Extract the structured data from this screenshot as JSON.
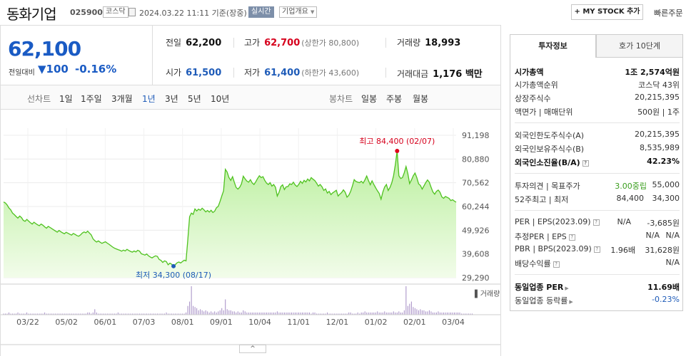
{
  "header": {
    "title": "동화기업",
    "code": "025900",
    "market": "코스닥",
    "date": "2024.03.22 11:11 기준(장중)",
    "realtime": "실시간",
    "company_info": "기업개요",
    "mystock": "+ MY STOCK 추가",
    "quick_order": "빠른주문"
  },
  "price": {
    "current": "62,100",
    "change_label": "전일대비",
    "change_arrow": "▼",
    "change": "100",
    "change_pct": "-0.16%"
  },
  "stats": {
    "prev_label": "전일",
    "prev": "62,200",
    "high_label": "고가",
    "high": "62,700",
    "upper_limit": "(상한가 80,800)",
    "volume_label": "거래량",
    "volume": "18,993",
    "open_label": "시가",
    "open": "61,500",
    "low_label": "저가",
    "low": "61,400",
    "lower_limit": "(하한가 43,600)",
    "amount_label": "거래대금",
    "amount": "1,176 백만"
  },
  "periods": {
    "line_label": "선차트",
    "line": [
      "1일",
      "1주일",
      "3개월",
      "1년",
      "3년",
      "5년",
      "10년"
    ],
    "selected": "1년",
    "candle_label": "봉차트",
    "candle": [
      "일봉",
      "주봉",
      "월봉"
    ]
  },
  "chart_data": {
    "type": "area",
    "y_ticks": [
      "91,198",
      "80,880",
      "70,562",
      "60,244",
      "49,926",
      "39,608",
      "29,290"
    ],
    "ylim": [
      29290,
      91198
    ],
    "x_ticks": [
      "03/22",
      "05/02",
      "06/01",
      "07/03",
      "08/01",
      "09/01",
      "10/04",
      "11/01",
      "12/01",
      "01/02",
      "02/01",
      "03/04"
    ],
    "high_label": "최고 84,400 (02/07)",
    "low_label": "최저 34,300 (08/17)",
    "volume_label": "거래량",
    "prices": [
      62200,
      61800,
      60900,
      59600,
      58800,
      57400,
      56700,
      55900,
      55200,
      56100,
      55400,
      54200,
      53800,
      54600,
      53900,
      53200,
      52600,
      53400,
      52800,
      52300,
      51900,
      52600,
      52100,
      51400,
      50800,
      51600,
      51100,
      50600,
      50100,
      49600,
      49100,
      49800,
      49300,
      48800,
      48400,
      49000,
      48600,
      48200,
      47800,
      48500,
      48100,
      47600,
      47300,
      47900,
      48700,
      49200,
      48800,
      49500,
      48700,
      47900,
      46200,
      45400,
      44800,
      45300,
      44700,
      44200,
      44600,
      44900,
      44300,
      43800,
      43200,
      42600,
      42100,
      41800,
      41500,
      41200,
      40800,
      41300,
      40900,
      41600,
      41100,
      40700,
      40400,
      40900,
      40500,
      41200,
      40800,
      39700,
      39400,
      39100,
      39600,
      38800,
      38300,
      37900,
      38400,
      38800,
      38500,
      37200,
      36800,
      35900,
      36600,
      36300,
      34900,
      35600,
      35100,
      34300,
      35000,
      35800,
      36100,
      35700,
      36300,
      36900,
      36600,
      45800,
      55800,
      57400,
      56800,
      59200,
      58300,
      59100,
      58600,
      59500,
      58800,
      57900,
      58500,
      57800,
      58600,
      57600,
      58200,
      59700,
      60300,
      62400,
      64800,
      67100,
      76400,
      75200,
      72800,
      71600,
      73200,
      70700,
      68500,
      67800,
      68600,
      70100,
      73400,
      72300,
      71300,
      70800,
      71900,
      70500,
      69800,
      71000,
      72400,
      73600,
      72800,
      73200,
      71600,
      70400,
      69800,
      70600,
      69100,
      69800,
      68600,
      64800,
      66400,
      68900,
      69700,
      67600,
      68800,
      68900,
      70100,
      69800,
      70800,
      69600,
      68900,
      69800,
      71200,
      70300,
      71600,
      70900,
      72200,
      71400,
      72800,
      72100,
      71500,
      70400,
      69100,
      69800,
      68800,
      67200,
      67900,
      66100,
      66800,
      65400,
      66200,
      66700,
      67300,
      64800,
      65600,
      66300,
      67500,
      66400,
      64300,
      65100,
      66800,
      69200,
      71900,
      71100,
      70800,
      70600,
      71200,
      70400,
      71800,
      73500,
      71500,
      69700,
      71400,
      69800,
      68400,
      67100,
      65900,
      63400,
      66500,
      68700,
      69800,
      67200,
      68500,
      70500,
      73600,
      78400,
      84400,
      73600,
      72400,
      72800,
      74900,
      77600,
      74600,
      70200,
      71800,
      73600,
      74800,
      72800,
      70100,
      69400,
      67800,
      69200,
      70600,
      71800,
      70800,
      68600,
      66600,
      65600,
      66800,
      67400,
      66400,
      64400,
      63800,
      64600,
      64200,
      63800,
      62800,
      63200,
      62600,
      62100
    ],
    "volumes": [
      1,
      1,
      1,
      2,
      1,
      1,
      1,
      1,
      2,
      1,
      1,
      1,
      1,
      2,
      1,
      1,
      1,
      1,
      1,
      1,
      1,
      1,
      1,
      2,
      1,
      1,
      1,
      1,
      1,
      1,
      1,
      1,
      1,
      1,
      1,
      1,
      1,
      1,
      1,
      1,
      1,
      1,
      1,
      1,
      1,
      1,
      1,
      2,
      2,
      1,
      2,
      5,
      2,
      1,
      1,
      1,
      1,
      1,
      1,
      1,
      1,
      1,
      1,
      1,
      2,
      1,
      1,
      1,
      1,
      1,
      1,
      1,
      1,
      1,
      1,
      1,
      1,
      1,
      1,
      1,
      1,
      1,
      1,
      1,
      1,
      1,
      1,
      1,
      1,
      1,
      1,
      2,
      1,
      1,
      1,
      1,
      1,
      1,
      1,
      1,
      1,
      1,
      2,
      8,
      12,
      26,
      8,
      7,
      6,
      4,
      5,
      4,
      3,
      4,
      3,
      2,
      3,
      2,
      3,
      2,
      3,
      4,
      6,
      4,
      14,
      5,
      4,
      4,
      3,
      3,
      2,
      3,
      2,
      2,
      4,
      3,
      2,
      2,
      2,
      2,
      2,
      2,
      2,
      2,
      2,
      2,
      2,
      2,
      2,
      2,
      2,
      2,
      2,
      3,
      2,
      2,
      2,
      2,
      2,
      2,
      2,
      2,
      2,
      2,
      2,
      2,
      2,
      2,
      2,
      2,
      2,
      2,
      1,
      2,
      2,
      1,
      1,
      1,
      1,
      1,
      1,
      2,
      1,
      1,
      1,
      1,
      1,
      1,
      1,
      1,
      1,
      1,
      1,
      2,
      2,
      1,
      1,
      1,
      2,
      1,
      2,
      2,
      3,
      2,
      2,
      2,
      2,
      2,
      2,
      3,
      2,
      2,
      2,
      3,
      2,
      2,
      2,
      2,
      3,
      2,
      2,
      3,
      2,
      2,
      4,
      26,
      8,
      10,
      12,
      7,
      6,
      5,
      4,
      5,
      4,
      4,
      3,
      3,
      4,
      3,
      2,
      2,
      2,
      3,
      2,
      2,
      2,
      2,
      2,
      2,
      2,
      2,
      2,
      2,
      2,
      2,
      1,
      1,
      1,
      1,
      1,
      1,
      1
    ],
    "grid": true
  },
  "panel": {
    "tab_invest": "투자정보",
    "tab_hoga": "호가 10단계",
    "market_cap_label": "시가총액",
    "market_cap": "1조 2,574억원",
    "cap_rank_label": "시가총액순위",
    "cap_rank": "코스닥 43위",
    "shares_label": "상장주식수",
    "shares": "20,215,395",
    "par_label": "액면가 | 매매단위",
    "par": "500원 | 1주",
    "foreign_limit_label": "외국인한도주식수(A)",
    "foreign_limit": "20,215,395",
    "foreign_hold_label": "외국인보유주식수(B)",
    "foreign_hold": "8,535,989",
    "foreign_ratio_label": "외국인소진율(B/A)",
    "foreign_ratio": "42.23%",
    "opinion_label": "투자의견 | 목표주가",
    "opinion": "3.00중립",
    "target": "55,000",
    "w52_label": "52주최고 | 최저",
    "w52_high": "84,400",
    "w52_low": "34,300",
    "per_label": "PER | EPS(2023.09)",
    "per": "N/A",
    "eps": "-3,685원",
    "est_label": "추정PER | EPS",
    "est_per": "N/A",
    "est_eps": "N/A",
    "pbr_label": "PBR | BPS(2023.09)",
    "pbr": "1.96배",
    "bps": "31,628원",
    "div_label": "배당수익률",
    "div": "N/A",
    "ind_per_label": "동일업종 PER",
    "ind_per": "11.69배",
    "ind_chg_label": "동일업종 등락률",
    "ind_chg": "-0.23%"
  },
  "collapse_icon": "^"
}
